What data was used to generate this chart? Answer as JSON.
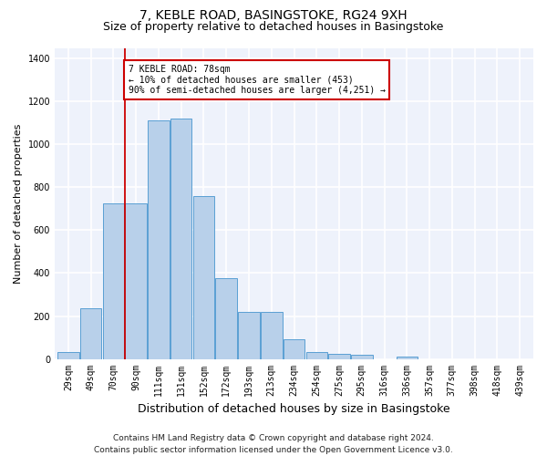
{
  "title": "7, KEBLE ROAD, BASINGSTOKE, RG24 9XH",
  "subtitle": "Size of property relative to detached houses in Basingstoke",
  "xlabel": "Distribution of detached houses by size in Basingstoke",
  "ylabel": "Number of detached properties",
  "footer_line1": "Contains HM Land Registry data © Crown copyright and database right 2024.",
  "footer_line2": "Contains public sector information licensed under the Open Government Licence v3.0.",
  "categories": [
    "29sqm",
    "49sqm",
    "70sqm",
    "90sqm",
    "111sqm",
    "131sqm",
    "152sqm",
    "172sqm",
    "193sqm",
    "213sqm",
    "234sqm",
    "254sqm",
    "275sqm",
    "295sqm",
    "316sqm",
    "336sqm",
    "357sqm",
    "377sqm",
    "398sqm",
    "418sqm",
    "439sqm"
  ],
  "values": [
    30,
    235,
    725,
    725,
    1110,
    1120,
    760,
    375,
    220,
    220,
    90,
    30,
    25,
    18,
    0,
    10,
    0,
    0,
    0,
    0,
    0
  ],
  "bar_color": "#b8d0ea",
  "bar_edge_color": "#5a9fd4",
  "vline_x": 2.5,
  "vline_color": "#cc0000",
  "annotation_text": "7 KEBLE ROAD: 78sqm\n← 10% of detached houses are smaller (453)\n90% of semi-detached houses are larger (4,251) →",
  "annotation_box_edge_color": "#cc0000",
  "annotation_box_face_color": "#ffffff",
  "ylim": [
    0,
    1450
  ],
  "yticks": [
    0,
    200,
    400,
    600,
    800,
    1000,
    1200,
    1400
  ],
  "background_color": "#eef2fb",
  "grid_color": "#ffffff",
  "title_fontsize": 10,
  "subtitle_fontsize": 9,
  "ylabel_fontsize": 8,
  "xlabel_fontsize": 9,
  "tick_fontsize": 7,
  "annotation_fontsize": 7,
  "footer_fontsize": 6.5
}
